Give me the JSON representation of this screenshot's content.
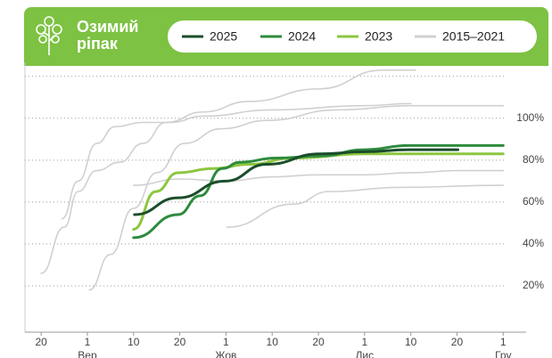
{
  "chart_data": {
    "type": "line",
    "title_lines": [
      "Озимий",
      "ріпак"
    ],
    "ylim": [
      0,
      125
    ],
    "yticks": [
      {
        "value": 20,
        "label": "20%"
      },
      {
        "value": 40,
        "label": "40%"
      },
      {
        "value": 60,
        "label": "60%"
      },
      {
        "value": 80,
        "label": "80%"
      },
      {
        "value": 100,
        "label": "100%"
      },
      120
    ],
    "xlim": [
      -0.35,
      10.4
    ],
    "xticks": [
      {
        "value": 0,
        "label": "20"
      },
      {
        "value": 1,
        "label": "1"
      },
      {
        "value": 2,
        "label": "10"
      },
      {
        "value": 3,
        "label": "20"
      },
      {
        "value": 4,
        "label": "1"
      },
      {
        "value": 5,
        "label": "10"
      },
      {
        "value": 6,
        "label": "20"
      },
      {
        "value": 7,
        "label": "1"
      },
      {
        "value": 8,
        "label": "10"
      },
      {
        "value": 9,
        "label": "20"
      },
      {
        "value": 10,
        "label": "1"
      }
    ],
    "xmonths": [
      {
        "value": 1,
        "label": "Вер"
      },
      {
        "value": 4,
        "label": "Жов"
      },
      {
        "value": 7,
        "label": "Лис"
      },
      {
        "value": 10,
        "label": "Гру"
      }
    ],
    "grid": true,
    "series": [
      {
        "name": "2015–2021",
        "color": "#d0d0d0",
        "x": [
          0,
          0.5,
          0.8,
          1.2,
          1.7,
          2.2,
          2.7,
          3.5,
          4.5,
          6,
          7.4,
          8.1
        ],
        "values": [
          26,
          48,
          65,
          75,
          79,
          88,
          98,
          103,
          108,
          114,
          123,
          123
        ]
      },
      {
        "name": null,
        "color": "#d0d0d0",
        "x": [
          0.45,
          0.8,
          1.2,
          1.6,
          2.2,
          2.8,
          3.5,
          5,
          7,
          8
        ],
        "values": [
          52,
          70,
          88,
          96,
          98,
          98,
          101,
          104,
          106,
          107
        ]
      },
      {
        "name": null,
        "color": "#d0d0d0",
        "x": [
          1.04,
          1.5,
          2,
          2.5,
          3.1,
          3.9,
          4.9,
          6.4,
          8,
          10
        ],
        "values": [
          18,
          35,
          57,
          74,
          88,
          95,
          99,
          104,
          106,
          106
        ]
      },
      {
        "name": null,
        "color": "#d0d0d0",
        "x": [
          2,
          3,
          4,
          5,
          6,
          7,
          8,
          9,
          10
        ],
        "values": [
          68,
          71,
          70,
          72,
          73,
          73,
          74,
          75,
          75
        ]
      },
      {
        "name": null,
        "color": "#d0d0d0",
        "x": [
          4.02,
          5.46,
          6.23,
          7.77,
          10
        ],
        "values": [
          48,
          59,
          65,
          67,
          68
        ]
      },
      {
        "name": "2023",
        "color": "#8cc63f",
        "x": [
          2,
          2.48,
          2.96,
          3.73,
          4.5,
          5.46,
          7,
          7.96,
          10
        ],
        "values": [
          47,
          65,
          74,
          76,
          78,
          81,
          83,
          83,
          83
        ]
      },
      {
        "name": "2024",
        "color": "#2e8b3e",
        "x": [
          2,
          2.96,
          3.44,
          3.92,
          4.3,
          5.08,
          6.04,
          7,
          7.96,
          9.02,
          10
        ],
        "values": [
          43,
          54,
          63,
          76,
          79,
          81,
          82,
          85,
          87,
          87,
          87
        ]
      },
      {
        "name": "2025",
        "color": "#1b4d2a",
        "x": [
          2.02,
          2.96,
          3.98,
          4.88,
          6.04,
          7,
          7.96,
          9.02
        ],
        "values": [
          54,
          62,
          70,
          78,
          83,
          84,
          85,
          85
        ]
      }
    ],
    "legend_order": [
      7,
      6,
      5,
      0
    ]
  }
}
